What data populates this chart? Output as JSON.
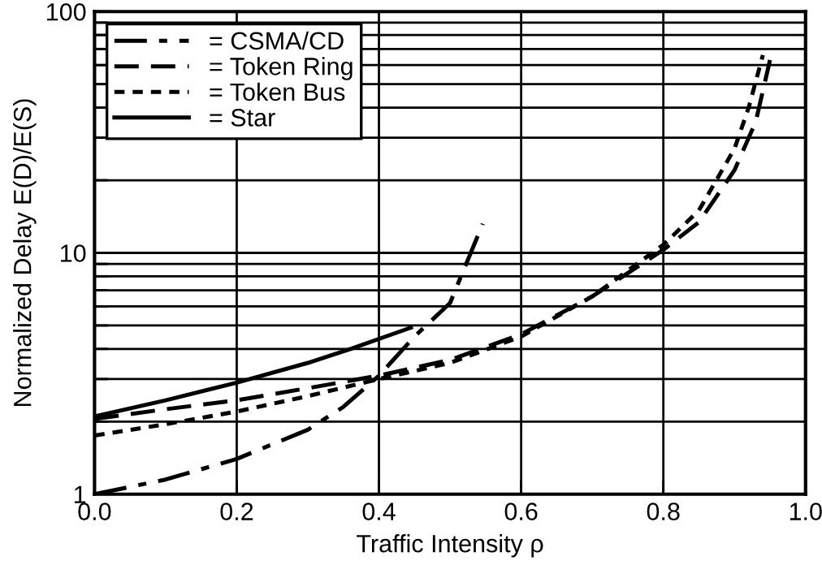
{
  "chart_data": {
    "type": "line",
    "xlabel": "Traffic Intensity ρ",
    "ylabel": "Normalized Delay E(D)/E(S)",
    "xlim": [
      0.0,
      1.0
    ],
    "xticks": [
      {
        "value": 0.0,
        "label": "0.0"
      },
      0.2,
      0.4,
      0.6,
      0.8,
      {
        "value": 1.0,
        "label": "1.0"
      }
    ],
    "ylim": [
      1,
      100
    ],
    "yticks": [
      1,
      {
        "value": 2,
        "label": null
      },
      {
        "value": 3,
        "label": null
      },
      {
        "value": 4,
        "label": null
      },
      {
        "value": 5,
        "label": null
      },
      {
        "value": 6,
        "label": null
      },
      {
        "value": 7,
        "label": null
      },
      {
        "value": 8,
        "label": null
      },
      {
        "value": 9,
        "label": null
      },
      10,
      {
        "value": 20,
        "label": null
      },
      {
        "value": 30,
        "label": null
      },
      {
        "value": 40,
        "label": null
      },
      {
        "value": 50,
        "label": null
      },
      {
        "value": 60,
        "label": null
      },
      {
        "value": 70,
        "label": null
      },
      {
        "value": 80,
        "label": null
      },
      {
        "value": 90,
        "label": null
      },
      100
    ],
    "log": "y",
    "grid": true,
    "legend": "top left",
    "series": [
      {
        "name": "= CSMA/CD",
        "color": "#000000",
        "line_style": "dashdot",
        "x": [
          0.0,
          0.1,
          0.2,
          0.3,
          0.35,
          0.4,
          0.45,
          0.5,
          0.546
        ],
        "values": [
          1.0,
          1.15,
          1.4,
          1.85,
          2.3,
          3.1,
          4.5,
          6.2,
          13.2
        ]
      },
      {
        "name": "= Token Ring",
        "color": "#000000",
        "line_style": "dashed",
        "x": [
          0.0,
          0.1,
          0.2,
          0.3,
          0.4,
          0.5,
          0.6,
          0.7,
          0.8,
          0.85,
          0.9,
          0.93,
          0.95
        ],
        "values": [
          2.05,
          2.25,
          2.45,
          2.75,
          3.1,
          3.6,
          4.6,
          6.6,
          10.3,
          13.4,
          22,
          35,
          63
        ]
      },
      {
        "name": "= Token Bus",
        "color": "#000000",
        "line_style": "dotted",
        "x": [
          0.0,
          0.1,
          0.2,
          0.3,
          0.4,
          0.5,
          0.6,
          0.7,
          0.8,
          0.85,
          0.9,
          0.92,
          0.94
        ],
        "values": [
          1.75,
          1.95,
          2.2,
          2.55,
          3.0,
          3.5,
          4.5,
          6.6,
          10.8,
          15,
          27,
          40,
          66
        ]
      },
      {
        "name": "= Star",
        "color": "#000000",
        "line_style": "solid",
        "x": [
          0.0,
          0.1,
          0.2,
          0.3,
          0.36,
          0.445
        ],
        "values": [
          2.1,
          2.45,
          2.9,
          3.5,
          4.0,
          4.9
        ]
      }
    ]
  }
}
